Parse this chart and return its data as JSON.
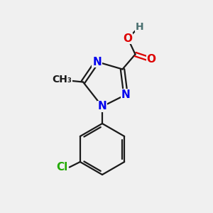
{
  "background_color": "#f0f0f0",
  "bond_color": "#1a1a1a",
  "N_color": "#0000ee",
  "O_color": "#dd0000",
  "Cl_color": "#22aa00",
  "H_color": "#4a7070",
  "C_color": "#1a1a1a",
  "figsize": [
    3.0,
    3.0
  ],
  "dpi": 100,
  "xlim": [
    0,
    10
  ],
  "ylim": [
    0,
    10
  ]
}
